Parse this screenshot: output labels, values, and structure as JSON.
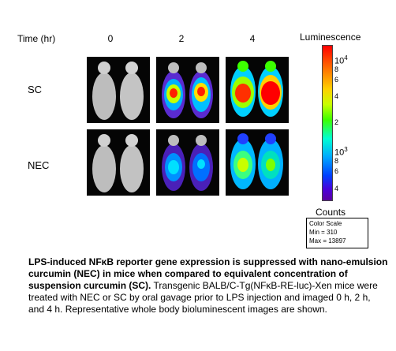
{
  "header": {
    "time_label": "Time (hr)",
    "columns": [
      "0",
      "2",
      "4"
    ]
  },
  "rows": [
    "SC",
    "NEC"
  ],
  "legend": {
    "title": "Luminescence",
    "ticks_top": [
      "10",
      "4",
      "8",
      "6",
      "4",
      "2"
    ],
    "ticks_bottom": [
      "10",
      "3",
      "8",
      "6",
      "4"
    ],
    "counts_label": "Counts",
    "color_scale": {
      "line1": "Color Scale",
      "min": "Min = 310",
      "max": "Max = 13897"
    }
  },
  "caption": {
    "bold": "LPS-induced NFκB reporter gene expression is suppressed with nano-emulsion curcumin (NEC) in mice when compared to equivalent concentration of suspension curcumin (SC).",
    "normal": "  Transgenic BALB/C-Tg(NFκB-RE-luc)-Xen mice were treated with NEC or SC by oral gavage prior to LPS injection and imaged 0 h, 2 h, and 4 h.  Representative whole body bioluminescent images are shown."
  }
}
